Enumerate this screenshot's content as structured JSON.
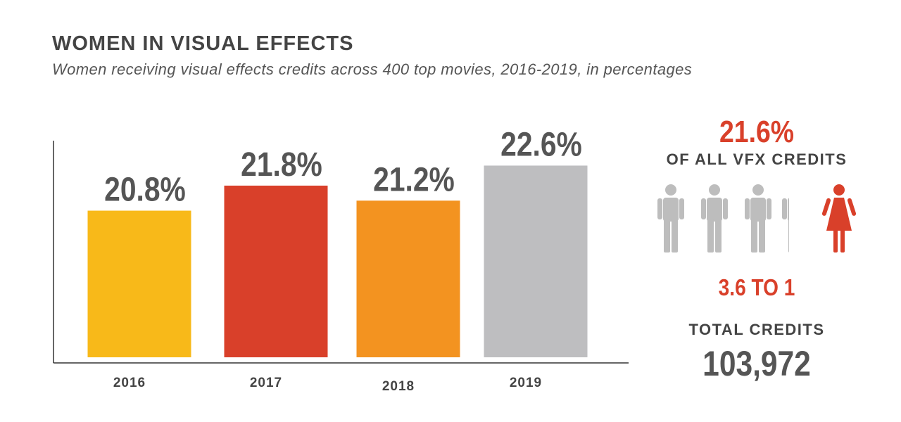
{
  "colors": {
    "text_dark": "#444444",
    "accent_red": "#d9402a",
    "person_gray": "#bdbdbd",
    "bar_2016": "#f8b919",
    "bar_2017": "#d9402a",
    "bar_2018": "#f39320",
    "bar_2019": "#bebec0"
  },
  "chart_data": {
    "type": "bar",
    "title": "WOMEN IN VISUAL EFFECTS",
    "subtitle": "Women receiving visual effects credits across 400 top movies, 2016-2019, in percentages",
    "categories": [
      "2016",
      "2017",
      "2018",
      "2019"
    ],
    "values": [
      20.8,
      21.8,
      21.2,
      22.6
    ],
    "value_labels": [
      "20.8%",
      "21.8%",
      "21.2%",
      "22.6%"
    ],
    "bar_colors": [
      "#f8b919",
      "#d9402a",
      "#f39320",
      "#bebec0"
    ],
    "xlabel": "",
    "ylabel": "",
    "ylim": [
      0,
      25
    ],
    "grid": false,
    "legend": "none"
  },
  "summary": {
    "share_value": "21.6%",
    "share_caption": "OF ALL VFX CREDITS",
    "ratio": "3.6 TO 1",
    "total_label": "TOTAL CREDITS",
    "total_value": "103,972",
    "men_icons": 3.6,
    "women_icons": 1,
    "man_icon": "man-icon",
    "woman_icon": "woman-icon"
  }
}
